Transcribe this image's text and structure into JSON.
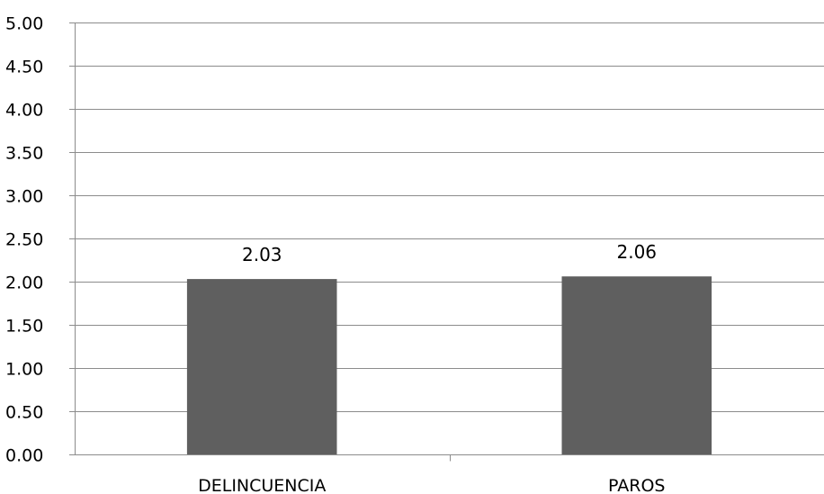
{
  "chart_data": {
    "type": "bar",
    "categories": [
      "DELINCUENCIA",
      "PAROS"
    ],
    "values": [
      2.03,
      2.06
    ],
    "data_labels": [
      "2.03",
      "2.06"
    ],
    "y_ticks": [
      "0.00",
      "0.50",
      "1.00",
      "1.50",
      "2.00",
      "2.50",
      "3.00",
      "3.50",
      "4.00",
      "4.50",
      "5.00"
    ],
    "ylim": [
      0,
      5
    ],
    "title": "",
    "xlabel": "",
    "ylabel": "",
    "grid": true,
    "legend": "none",
    "bar_color": "#5f5f5f",
    "grid_color": "#8c8c8c"
  }
}
